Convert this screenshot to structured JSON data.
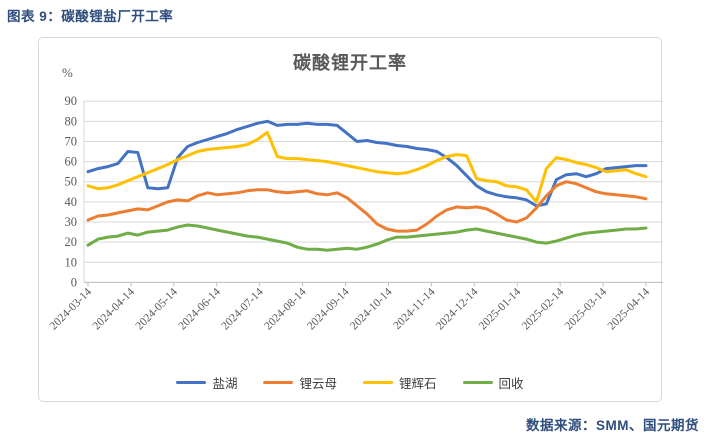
{
  "figure_label": "图表 9：碳酸锂盐厂开工率",
  "source_note": "数据来源：SMM、国元期货",
  "chart_data": {
    "type": "line",
    "title": "碳酸锂开工率",
    "y_unit_label": "%",
    "ylim": [
      0,
      90
    ],
    "y_ticks": [
      90,
      80,
      70,
      60,
      50,
      40,
      30,
      20,
      10,
      0
    ],
    "grid": true,
    "legend_position": "bottom",
    "x_frequency": "weekly",
    "x_start": "2024-03-14",
    "x_end": "2025-04-14",
    "x_tick_labels": [
      "2024-03-14",
      "2024-04-14",
      "2024-05-14",
      "2024-06-14",
      "2024-07-14",
      "2024-08-14",
      "2024-09-14",
      "2024-10-14",
      "2024-11-14",
      "2024-12-14",
      "2025-01-14",
      "2025-02-14",
      "2025-03-14",
      "2025-04-14"
    ],
    "series": [
      {
        "name": "盐湖",
        "color": "#4472C4",
        "values": [
          55,
          56.5,
          57.5,
          59,
          65,
          64.5,
          47,
          46.5,
          47,
          62,
          67.5,
          69.5,
          71,
          72.5,
          74,
          76,
          77.5,
          79,
          80,
          78,
          78.5,
          78.5,
          79,
          78.5,
          78.5,
          78,
          74,
          70,
          70.5,
          69.5,
          69,
          68,
          67.5,
          66.5,
          66,
          65,
          62,
          58,
          53,
          48,
          45,
          43.5,
          42.5,
          42,
          41,
          38,
          39,
          51,
          53.5,
          54,
          52.5,
          54,
          56.5,
          57,
          57.5,
          58,
          58
        ]
      },
      {
        "name": "锂云母",
        "color": "#ED7D31",
        "values": [
          31,
          33,
          33.5,
          34.5,
          35.5,
          36.5,
          36,
          38,
          40,
          41,
          40.5,
          43,
          44.5,
          43.5,
          44,
          44.5,
          45.5,
          46,
          46,
          45,
          44.5,
          45,
          45.5,
          44,
          43.5,
          44.5,
          42,
          38,
          34,
          29,
          26.5,
          25.5,
          25.5,
          26,
          29,
          33,
          36,
          37.5,
          37,
          37.5,
          36.5,
          34,
          31,
          30,
          32,
          37,
          43,
          48,
          50,
          49,
          47,
          45,
          44,
          43.5,
          43,
          42.5,
          41.5
        ]
      },
      {
        "name": "锂辉石",
        "color": "#FFC000",
        "values": [
          48,
          46.5,
          47,
          48.5,
          50.5,
          52.5,
          54.5,
          56.5,
          58.5,
          61,
          63,
          65,
          66,
          66.5,
          67,
          67.5,
          68.5,
          71,
          74.5,
          62.5,
          61.5,
          61.5,
          61,
          60.5,
          60,
          59,
          58,
          57,
          56,
          55,
          54.5,
          54,
          54.5,
          56,
          58,
          60.5,
          62.5,
          63.5,
          63,
          51.5,
          50.5,
          50,
          48,
          47.5,
          46,
          40,
          56.5,
          62,
          61,
          59.5,
          58.5,
          57,
          55,
          55.5,
          56,
          54,
          52.5
        ]
      },
      {
        "name": "回收",
        "color": "#70AD47",
        "values": [
          18.5,
          21.5,
          22.5,
          23,
          24.5,
          23.5,
          25,
          25.5,
          26,
          27.5,
          28.5,
          28,
          27,
          26,
          25,
          24,
          23,
          22.5,
          21.5,
          20.5,
          19.5,
          17.5,
          16.5,
          16.5,
          16,
          16.5,
          17,
          16.5,
          17.5,
          19,
          21,
          22.5,
          22.5,
          23,
          23.5,
          24,
          24.5,
          25,
          26,
          26.5,
          25.5,
          24.5,
          23.5,
          22.5,
          21.5,
          20,
          19.5,
          20.5,
          22,
          23.5,
          24.5,
          25,
          25.5,
          26,
          26.5,
          26.5,
          27
        ]
      }
    ]
  },
  "colors": {
    "accent_text": "#2F4E7D",
    "chart_title": "#595959",
    "grid": "#D9D9D9",
    "axis": "#BFBFBF"
  }
}
